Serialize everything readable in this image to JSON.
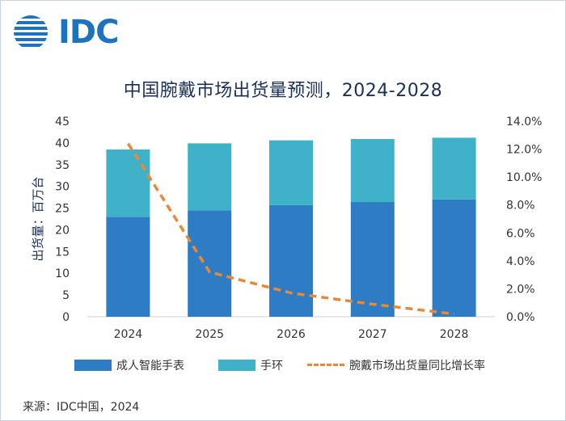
{
  "logo": {
    "text": "IDC"
  },
  "title": "中国腕戴市场出货量预测，2024-2028",
  "source": "来源：IDC中国，2024",
  "colors": {
    "adult_watch": "#2d7cc4",
    "band": "#3fb1c9",
    "growth_line": "#e8893a",
    "title": "#1a2f5a",
    "logo": "#1e73be"
  },
  "chart_data": {
    "type": "bar",
    "stacked": true,
    "categories": [
      "2024",
      "2025",
      "2026",
      "2027",
      "2028"
    ],
    "series": [
      {
        "name": "成人智能手表",
        "axis": "left",
        "values": [
          23.0,
          24.5,
          25.7,
          26.4,
          27.0
        ]
      },
      {
        "name": "手环",
        "axis": "left",
        "values": [
          15.5,
          15.4,
          14.9,
          14.5,
          14.2
        ]
      },
      {
        "name": "腕戴市场出货量同比增长率",
        "type": "line",
        "style": "dashed",
        "axis": "right",
        "values": [
          12.4,
          3.2,
          1.7,
          0.9,
          0.2
        ]
      }
    ],
    "ylabel": "出货量：百万台",
    "ylim": [
      0,
      45
    ],
    "yticks": [
      "0",
      "5",
      "10",
      "15",
      "20",
      "25",
      "30",
      "35",
      "40",
      "45"
    ],
    "y2lim": [
      0,
      14
    ],
    "y2ticks": [
      "0.0%",
      "2.0%",
      "4.0%",
      "6.0%",
      "8.0%",
      "10.0%",
      "12.0%",
      "14.0%"
    ],
    "grid": false,
    "legend_position": "bottom"
  }
}
